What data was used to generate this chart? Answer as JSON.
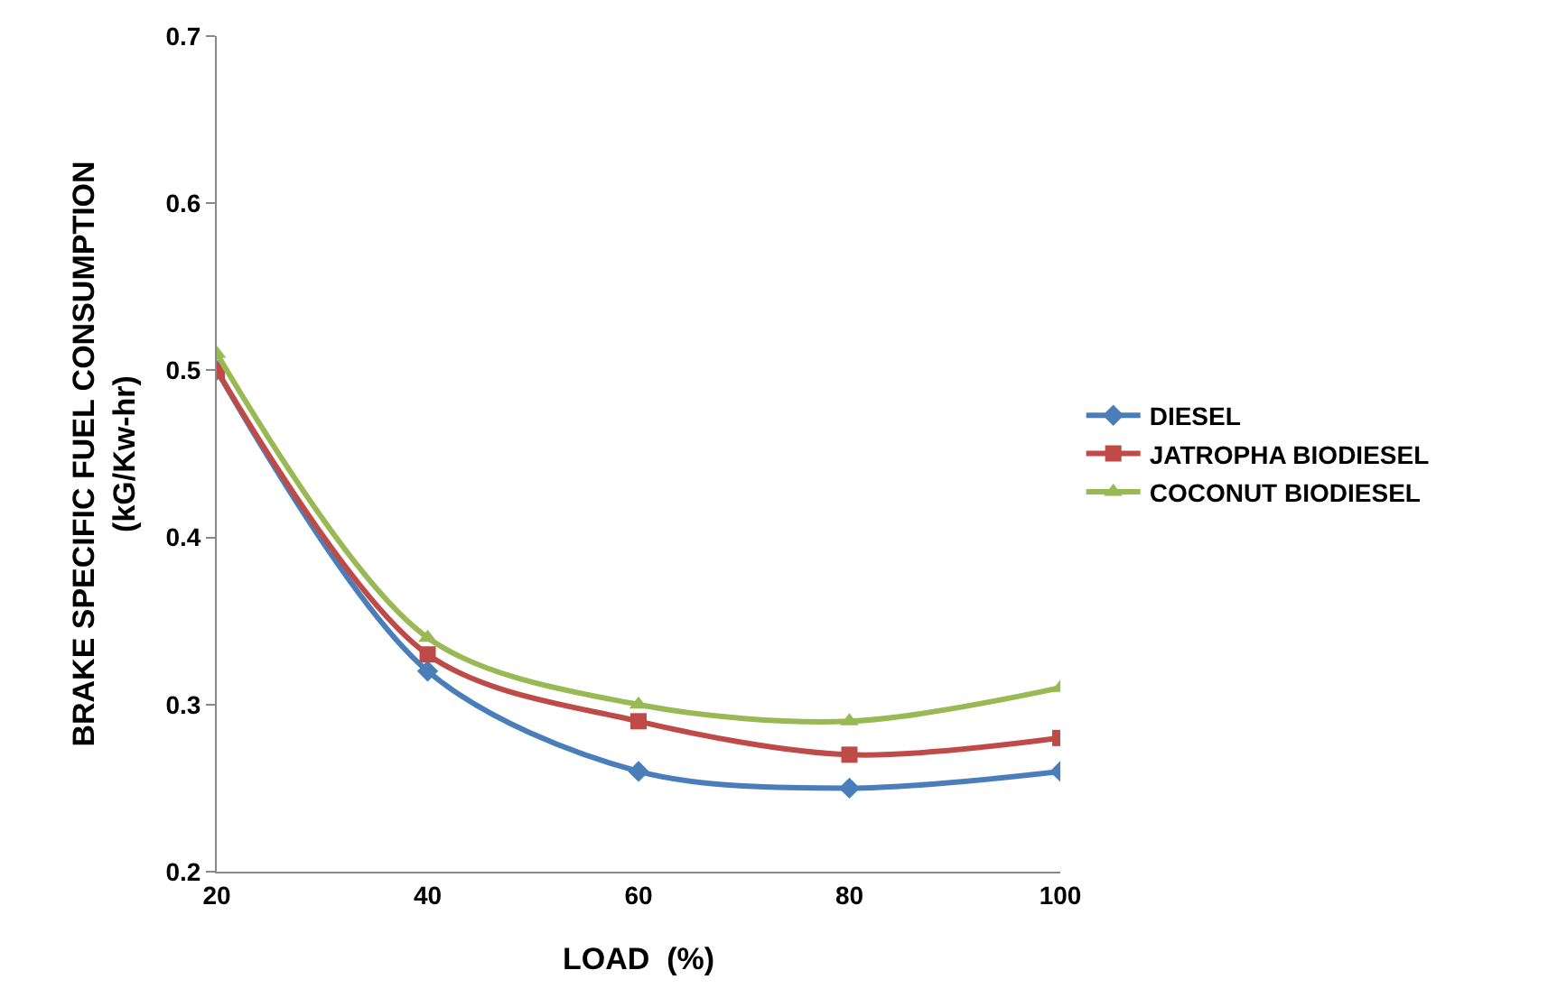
{
  "chart_data": {
    "type": "line",
    "xlabel": "LOAD  (%)",
    "ylabel": "BRAKE SPECIFIC FUEL CONSUMPTION\n(kG/Kw-hr)",
    "x": [
      20,
      40,
      60,
      80,
      100
    ],
    "series": [
      {
        "name": "DIESEL",
        "color": "#4a7ebb",
        "marker": "diamond",
        "values": [
          0.5,
          0.32,
          0.26,
          0.25,
          0.26
        ]
      },
      {
        "name": "JATROPHA BIODIESEL",
        "color": "#be4b48",
        "marker": "square",
        "values": [
          0.5,
          0.33,
          0.29,
          0.27,
          0.28
        ]
      },
      {
        "name": "COCONUT BIODIESEL",
        "color": "#98b954",
        "marker": "triangle",
        "values": [
          0.51,
          0.34,
          0.3,
          0.29,
          0.31
        ]
      }
    ],
    "xlim": [
      20,
      100
    ],
    "xticks": [
      20,
      40,
      60,
      80,
      100
    ],
    "ylim": [
      0.2,
      0.7
    ],
    "yticks": [
      {
        "value": 0.2,
        "label": "0.2"
      },
      {
        "value": 0.3,
        "label": "0.3"
      },
      {
        "value": 0.4,
        "label": "0.4"
      },
      {
        "value": 0.5,
        "label": "0.5"
      },
      {
        "value": 0.6,
        "label": "0.6"
      },
      {
        "value": 0.7,
        "label": "0.7"
      }
    ],
    "grid": false,
    "legend": "right",
    "line_style": "solid"
  }
}
